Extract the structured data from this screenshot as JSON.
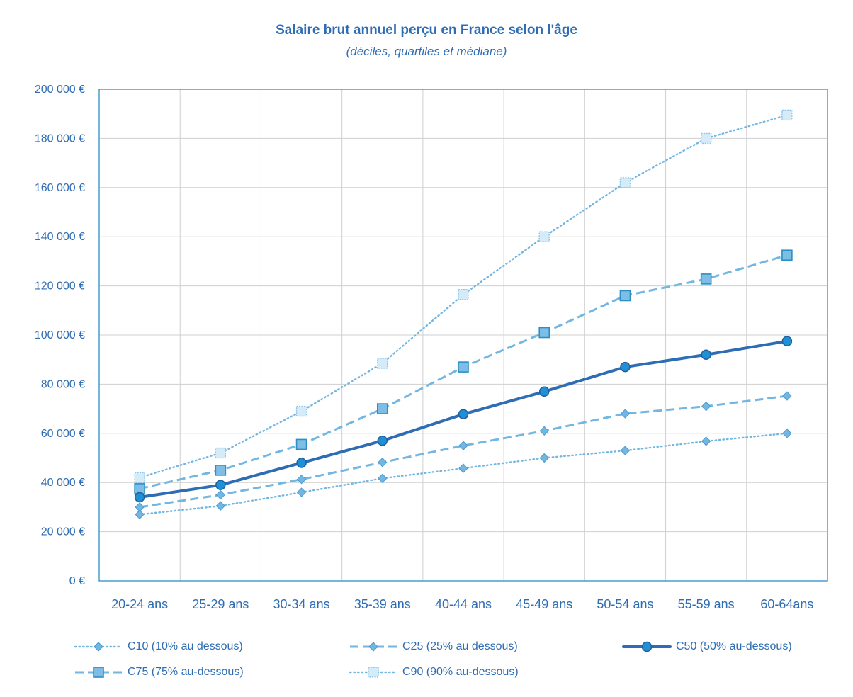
{
  "chart_data": {
    "type": "line",
    "title": "Salaire brut annuel perçu en France selon l'âge",
    "subtitle": "(déciles, quartiles et médiane)",
    "categories": [
      "20-24 ans",
      "25-29 ans",
      "30-34 ans",
      "35-39 ans",
      "40-44 ans",
      "45-49 ans",
      "50-54 ans",
      "55-59 ans",
      "60-64ans"
    ],
    "ylim": [
      0,
      200000
    ],
    "yticks": [
      0,
      20000,
      40000,
      60000,
      80000,
      100000,
      120000,
      140000,
      160000,
      180000,
      200000
    ],
    "ytick_labels": [
      "0 €",
      "20 000 €",
      "40 000 €",
      "60 000 €",
      "80 000 €",
      "100 000 €",
      "120 000 €",
      "140 000 €",
      "160 000 €",
      "180 000 €",
      "200 000 €"
    ],
    "grid": true,
    "legend_position": "bottom",
    "series": [
      {
        "name": "C10 (10% au dessous)",
        "style": "dotted",
        "marker": "diamond",
        "color": "#72b6e2",
        "values": [
          27000,
          30500,
          36000,
          41700,
          45800,
          50000,
          53000,
          56800,
          60000
        ]
      },
      {
        "name": "C25 (25% au dessous)",
        "style": "dashed",
        "marker": "diamond",
        "color": "#72b6e2",
        "values": [
          30000,
          35000,
          41300,
          48200,
          55000,
          61000,
          68000,
          71000,
          75200
        ]
      },
      {
        "name": "C50 (50% au-dessous)",
        "style": "solid",
        "marker": "circle",
        "color": "#2e6db4",
        "values": [
          34000,
          39000,
          48000,
          57000,
          67800,
          77000,
          87000,
          92000,
          97500
        ]
      },
      {
        "name": "C75 (75% au-dessous)",
        "style": "dashed",
        "marker": "square",
        "color": "#72b6e2",
        "values": [
          37500,
          45000,
          55500,
          70000,
          87000,
          101000,
          116000,
          122800,
          132500
        ]
      },
      {
        "name": "C90 (90% au-dessous)",
        "style": "dotted",
        "marker": "square-light",
        "color": "#72b6e2",
        "values": [
          42000,
          52000,
          69000,
          88500,
          116500,
          140000,
          162000,
          180000,
          189500
        ]
      }
    ]
  }
}
